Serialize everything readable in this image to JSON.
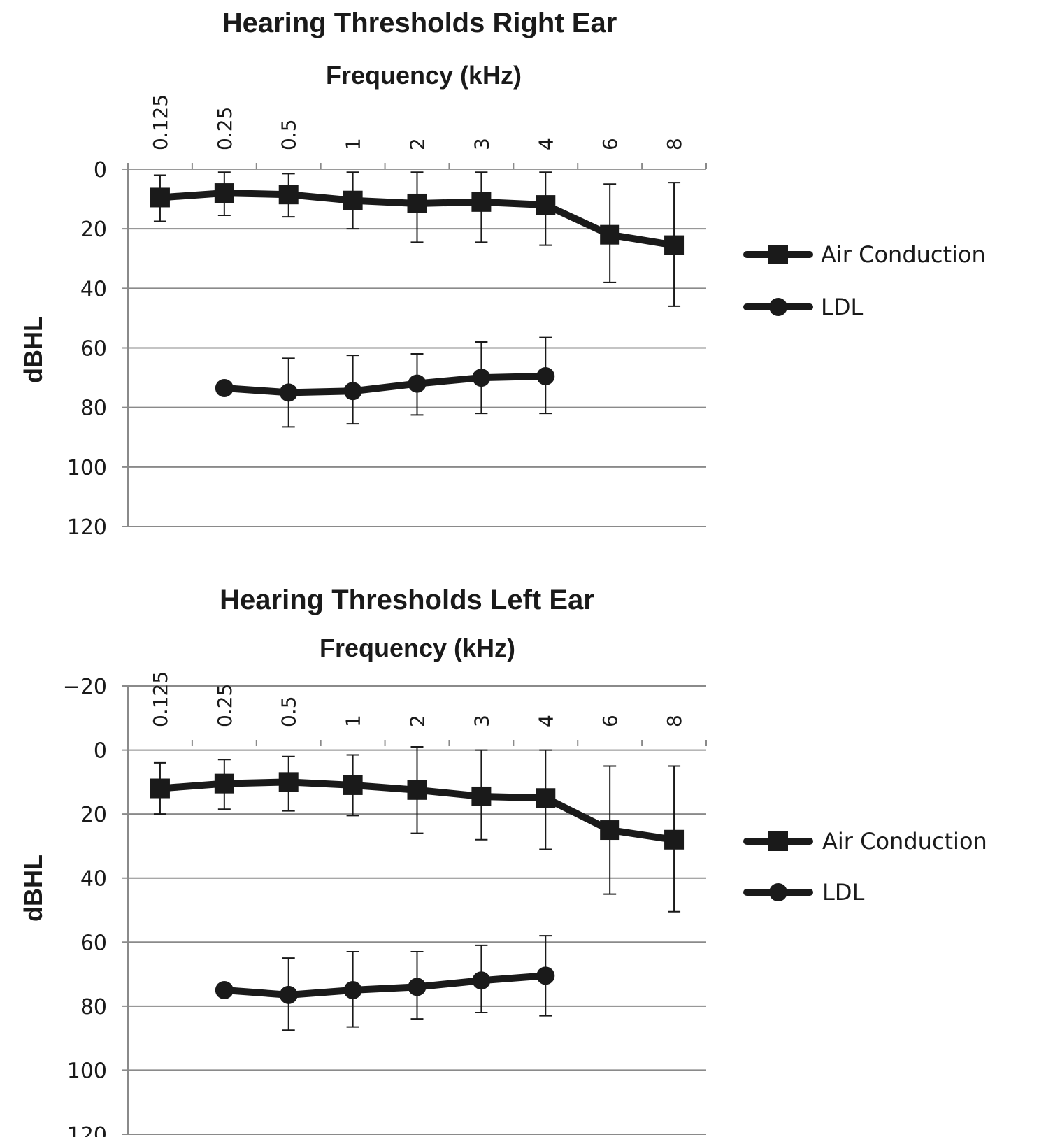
{
  "chart_data": [
    {
      "type": "line",
      "title": "Hearing Thresholds Right Ear",
      "xlabel": "Frequency (kHz)",
      "ylabel": "dBHL",
      "categories": [
        "0.125",
        "0.25",
        "0.5",
        "1",
        "2",
        "3",
        "4",
        "6",
        "8"
      ],
      "yticks": [
        "0",
        "20",
        "40",
        "60",
        "80",
        "100",
        "120"
      ],
      "ylim": [
        0,
        120
      ],
      "y_inverted": true,
      "x_axis_position": "top",
      "grid": true,
      "legend_position": "right",
      "series": [
        {
          "name": "Air Conduction",
          "marker": "square",
          "values": [
            9.5,
            8,
            8.5,
            10.5,
            11.5,
            11,
            12,
            22,
            25.5
          ],
          "error_low": [
            2,
            1,
            1.5,
            1,
            1,
            1,
            1,
            5,
            4.5
          ],
          "error_high": [
            17.5,
            15.5,
            16,
            20,
            24.5,
            24.5,
            25.5,
            38,
            46
          ]
        },
        {
          "name": "LDL",
          "marker": "circle",
          "values": [
            null,
            73.5,
            75,
            74.5,
            72,
            70,
            69.5,
            null,
            null
          ],
          "error_low": [
            null,
            null,
            63.5,
            62.5,
            62,
            58,
            56.5,
            null,
            null
          ],
          "error_high": [
            null,
            null,
            86.5,
            85.5,
            82.5,
            82,
            82,
            null,
            null
          ]
        }
      ],
      "line_color": "#1a1a1a"
    },
    {
      "type": "line",
      "title": "Hearing Thresholds Left Ear",
      "xlabel": "Frequency (kHz)",
      "ylabel": "dBHL",
      "categories": [
        "0.125",
        "0.25",
        "0.5",
        "1",
        "2",
        "3",
        "4",
        "6",
        "8"
      ],
      "yticks": [
        "−20",
        "0",
        "20",
        "40",
        "60",
        "80",
        "100",
        "120"
      ],
      "ylim": [
        -20,
        120
      ],
      "y_inverted": true,
      "x_axis_position": "top",
      "grid": true,
      "legend_position": "right",
      "series": [
        {
          "name": "Air Conduction",
          "marker": "square",
          "values": [
            12,
            10.5,
            10,
            11,
            12.5,
            14.5,
            15,
            25,
            28
          ],
          "error_low": [
            4,
            3,
            2,
            1.5,
            -1,
            0,
            0,
            5,
            5
          ],
          "error_high": [
            20,
            18.5,
            19,
            20.5,
            26,
            28,
            31,
            45,
            50.5
          ]
        },
        {
          "name": "LDL",
          "marker": "circle",
          "values": [
            null,
            75,
            76.5,
            75,
            74,
            72,
            70.5,
            null,
            null
          ],
          "error_low": [
            null,
            null,
            65,
            63,
            63,
            61,
            58,
            null,
            null
          ],
          "error_high": [
            null,
            null,
            87.5,
            86.5,
            84,
            82,
            83,
            null,
            null
          ]
        }
      ],
      "line_color": "#1a1a1a"
    }
  ]
}
